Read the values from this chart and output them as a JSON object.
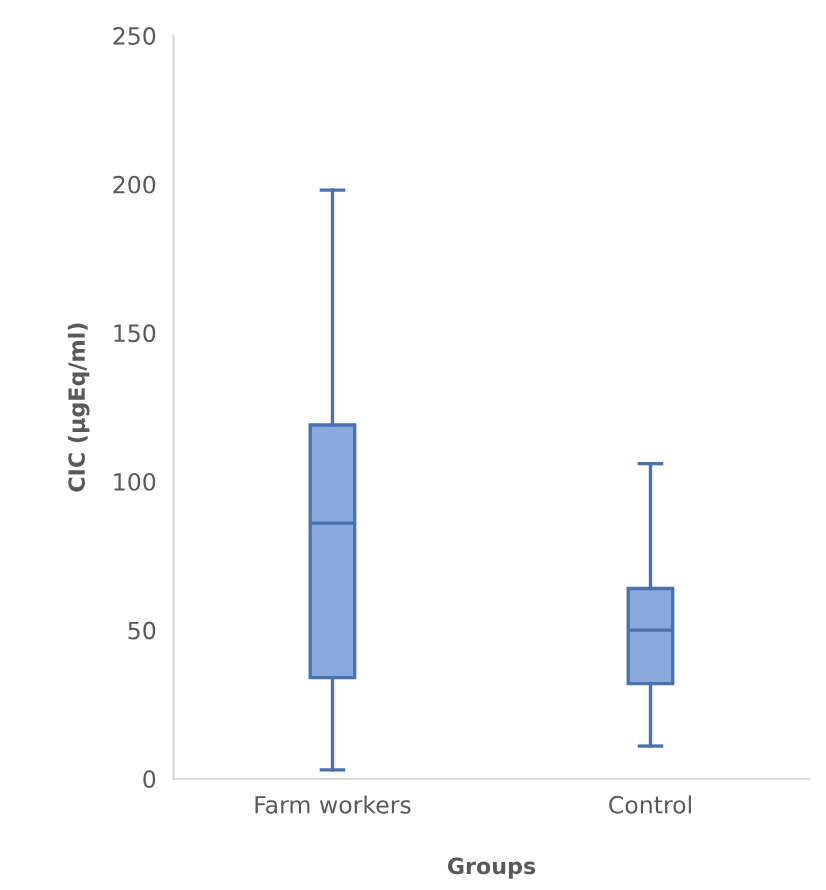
{
  "chart_data": {
    "type": "box",
    "xlabel": "Groups",
    "ylabel": "CIC (µgEq/ml)",
    "categories": [
      "Farm workers",
      "Control"
    ],
    "boxes": [
      {
        "low": 3,
        "q1": 34,
        "median": 86,
        "q3": 119,
        "high": 198
      },
      {
        "low": 11,
        "q1": 32,
        "median": 50,
        "q3": 64,
        "high": 106
      }
    ],
    "color": "#8aa9dc",
    "ylim": [
      0,
      250
    ],
    "yticks": [
      0,
      50,
      100,
      150,
      200,
      250
    ],
    "grid": false,
    "legend": false
  }
}
